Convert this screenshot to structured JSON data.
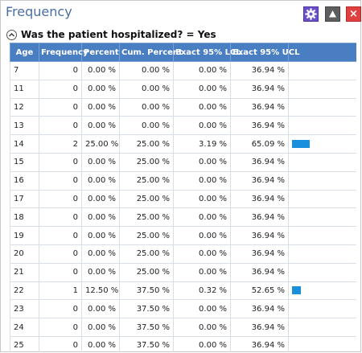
{
  "window": {
    "title": "Frequency"
  },
  "toolbar": {
    "close_label": "×"
  },
  "section": {
    "label": "Was the patient hospitalized? = Yes"
  },
  "table": {
    "headers": [
      "Age",
      "Frequency",
      "Percent",
      "Cum. Percent",
      "Exact 95% LCL",
      "Exact 95% UCL",
      ""
    ],
    "rows": [
      {
        "age": "7",
        "frequency": "0",
        "percent": "0.00 %",
        "cum": "0.00 %",
        "lcl": "0.00 %",
        "ucl": "36.94 %",
        "bar": 0
      },
      {
        "age": "11",
        "frequency": "0",
        "percent": "0.00 %",
        "cum": "0.00 %",
        "lcl": "0.00 %",
        "ucl": "36.94 %",
        "bar": 0
      },
      {
        "age": "12",
        "frequency": "0",
        "percent": "0.00 %",
        "cum": "0.00 %",
        "lcl": "0.00 %",
        "ucl": "36.94 %",
        "bar": 0
      },
      {
        "age": "13",
        "frequency": "0",
        "percent": "0.00 %",
        "cum": "0.00 %",
        "lcl": "0.00 %",
        "ucl": "36.94 %",
        "bar": 0
      },
      {
        "age": "14",
        "frequency": "2",
        "percent": "25.00 %",
        "cum": "25.00 %",
        "lcl": "3.19 %",
        "ucl": "65.09 %",
        "bar": 25.0
      },
      {
        "age": "15",
        "frequency": "0",
        "percent": "0.00 %",
        "cum": "25.00 %",
        "lcl": "0.00 %",
        "ucl": "36.94 %",
        "bar": 0
      },
      {
        "age": "16",
        "frequency": "0",
        "percent": "0.00 %",
        "cum": "25.00 %",
        "lcl": "0.00 %",
        "ucl": "36.94 %",
        "bar": 0
      },
      {
        "age": "17",
        "frequency": "0",
        "percent": "0.00 %",
        "cum": "25.00 %",
        "lcl": "0.00 %",
        "ucl": "36.94 %",
        "bar": 0
      },
      {
        "age": "18",
        "frequency": "0",
        "percent": "0.00 %",
        "cum": "25.00 %",
        "lcl": "0.00 %",
        "ucl": "36.94 %",
        "bar": 0
      },
      {
        "age": "19",
        "frequency": "0",
        "percent": "0.00 %",
        "cum": "25.00 %",
        "lcl": "0.00 %",
        "ucl": "36.94 %",
        "bar": 0
      },
      {
        "age": "20",
        "frequency": "0",
        "percent": "0.00 %",
        "cum": "25.00 %",
        "lcl": "0.00 %",
        "ucl": "36.94 %",
        "bar": 0
      },
      {
        "age": "21",
        "frequency": "0",
        "percent": "0.00 %",
        "cum": "25.00 %",
        "lcl": "0.00 %",
        "ucl": "36.94 %",
        "bar": 0
      },
      {
        "age": "22",
        "frequency": "1",
        "percent": "12.50 %",
        "cum": "37.50 %",
        "lcl": "0.32 %",
        "ucl": "52.65 %",
        "bar": 12.5
      },
      {
        "age": "23",
        "frequency": "0",
        "percent": "0.00 %",
        "cum": "37.50 %",
        "lcl": "0.00 %",
        "ucl": "36.94 %",
        "bar": 0
      },
      {
        "age": "24",
        "frequency": "0",
        "percent": "0.00 %",
        "cum": "37.50 %",
        "lcl": "0.00 %",
        "ucl": "36.94 %",
        "bar": 0
      },
      {
        "age": "25",
        "frequency": "0",
        "percent": "0.00 %",
        "cum": "37.50 %",
        "lcl": "0.00 %",
        "ucl": "36.94 %",
        "bar": 0
      }
    ]
  },
  "icons": {
    "settings": "gear-icon",
    "collapse": "collapse-up-icon",
    "close": "close-icon",
    "up": "triangle-up-icon"
  },
  "colors": {
    "title": "#4a6fa3",
    "header_bg": "#4a7ec2",
    "bar": "#1a8fdc",
    "settings_button": "#6a4fc7",
    "close_button": "#e04040"
  }
}
